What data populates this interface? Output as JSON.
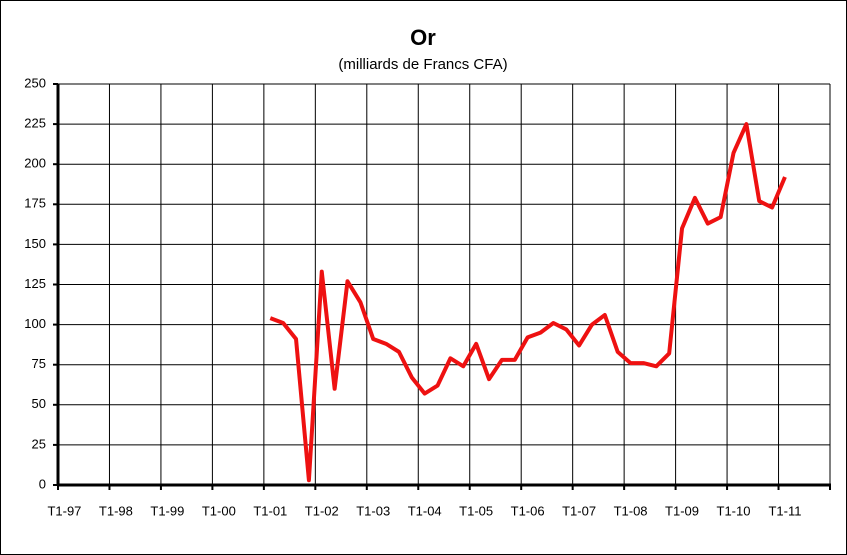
{
  "chart_data": {
    "type": "line",
    "title": "Or",
    "subtitle": "(milliards de Francs CFA)",
    "categories": [
      "T1-97",
      null,
      null,
      null,
      "T1-98",
      null,
      null,
      null,
      "T1-99",
      null,
      null,
      null,
      "T1-00",
      null,
      null,
      null,
      "T1-01",
      null,
      null,
      null,
      "T1-02",
      null,
      null,
      null,
      "T1-03",
      null,
      null,
      null,
      "T1-04",
      null,
      null,
      null,
      "T1-05",
      null,
      null,
      null,
      "T1-06",
      null,
      null,
      null,
      "T1-07",
      null,
      null,
      null,
      "T1-08",
      null,
      null,
      null,
      "T1-09",
      null,
      null,
      null,
      "T1-10",
      null,
      null,
      null,
      "T1-11",
      null,
      null,
      null
    ],
    "values": [
      null,
      null,
      null,
      null,
      null,
      null,
      null,
      null,
      null,
      null,
      null,
      null,
      null,
      null,
      null,
      null,
      104,
      101,
      91,
      3,
      133,
      60,
      127,
      114,
      91,
      88,
      83,
      67,
      57,
      62,
      79,
      74,
      88,
      66,
      78,
      78,
      92,
      95,
      101,
      97,
      87,
      100,
      106,
      83,
      76,
      76,
      74,
      82,
      160,
      179,
      163,
      167,
      207,
      225,
      177,
      173,
      192,
      null,
      null,
      null
    ],
    "color": "#ee1111",
    "ylim": [
      0,
      250
    ],
    "yticks": [
      0,
      25,
      50,
      75,
      100,
      125,
      150,
      175,
      200,
      225,
      250
    ],
    "grid": true
  }
}
